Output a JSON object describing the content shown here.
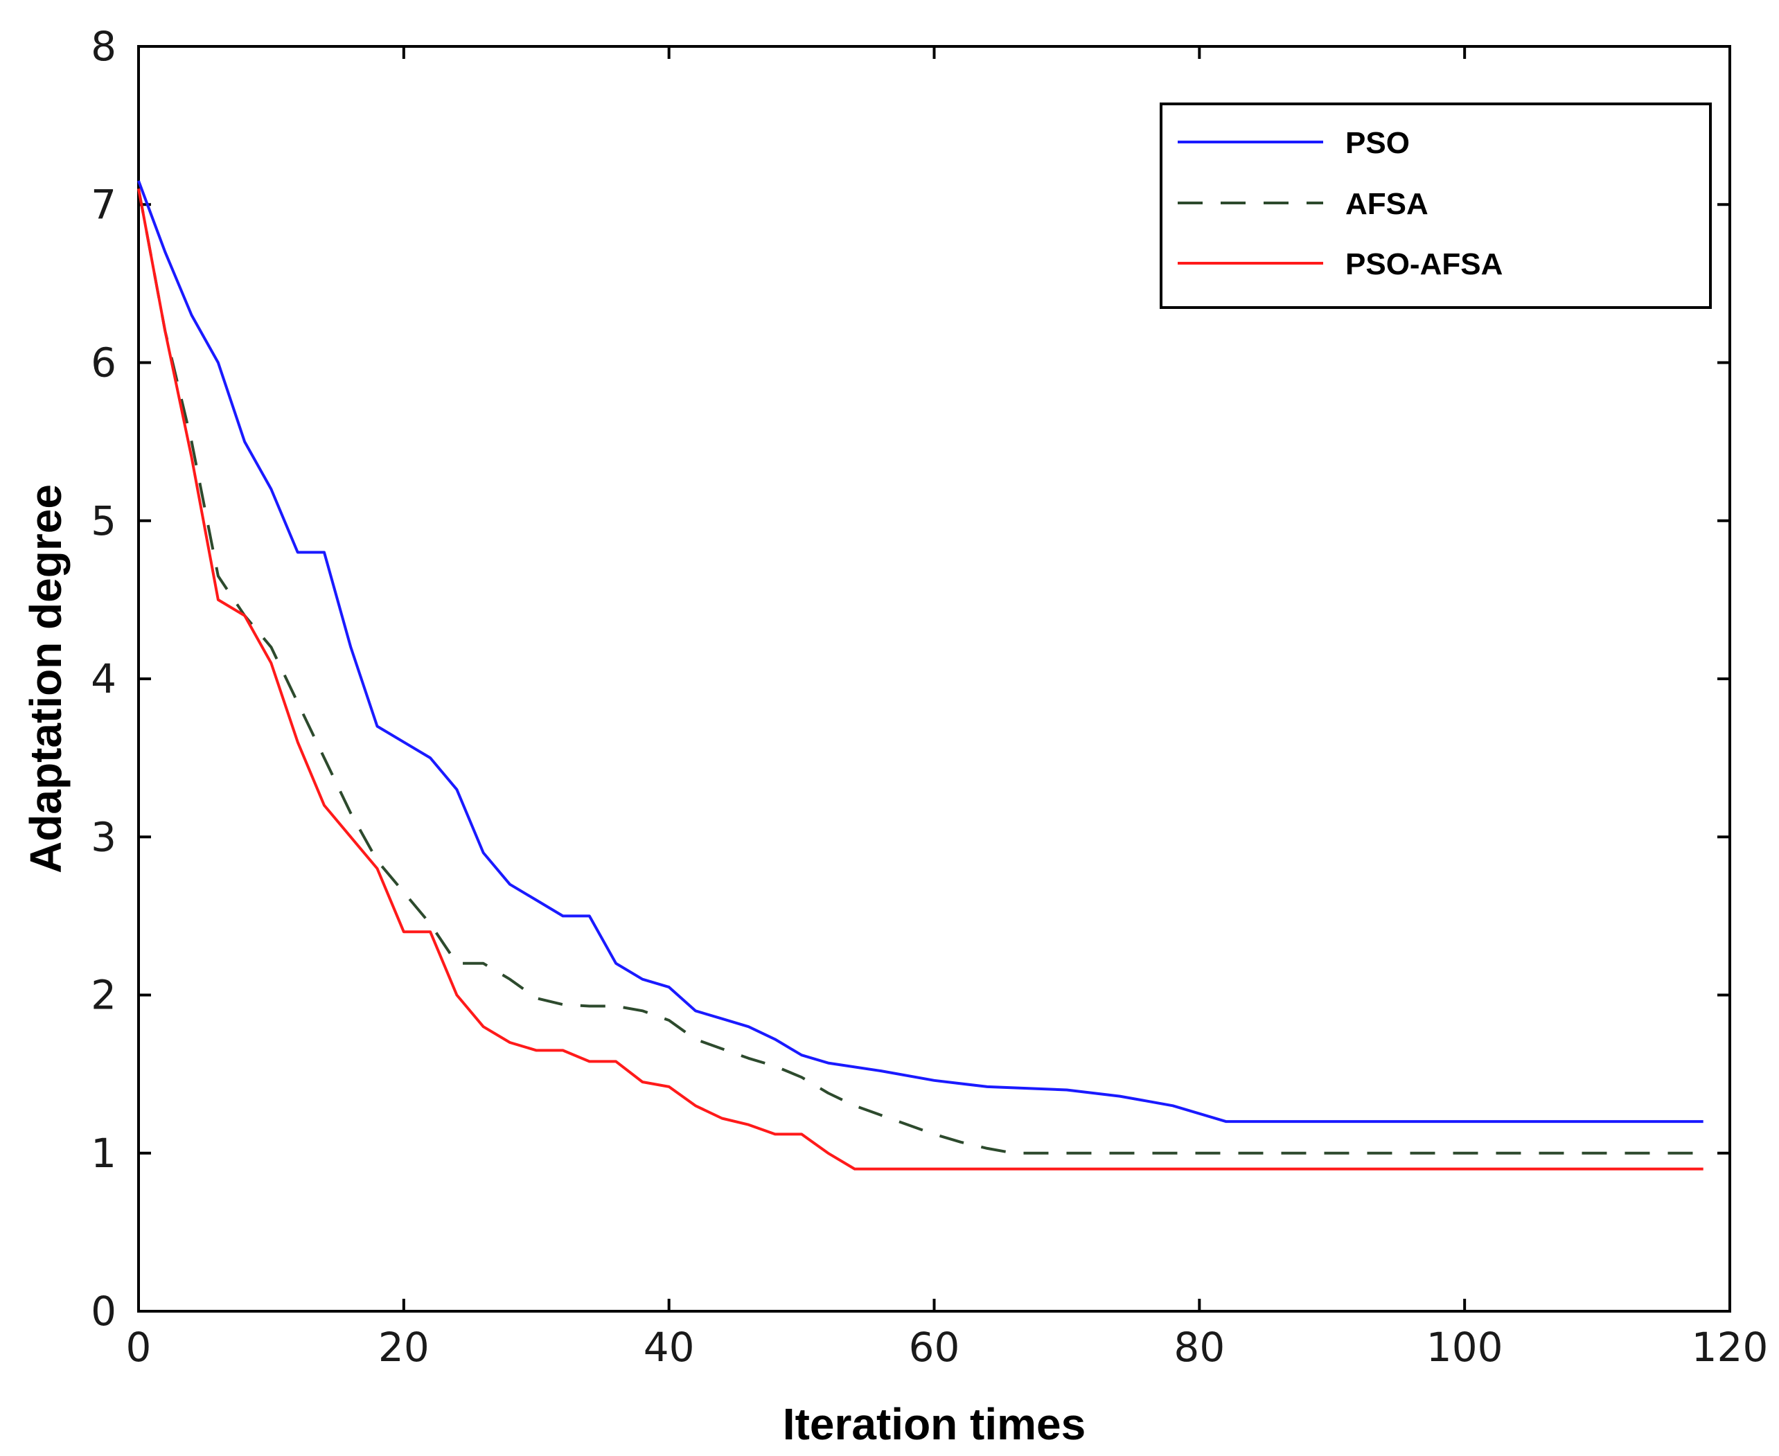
{
  "chart_data": {
    "type": "line",
    "title": "",
    "xlabel": "Iteration times",
    "ylabel": "Adaptation degree",
    "xlim": [
      0,
      120
    ],
    "ylim": [
      0,
      8
    ],
    "xticks": [
      0,
      20,
      40,
      60,
      80,
      100,
      120
    ],
    "yticks": [
      0,
      1,
      2,
      3,
      4,
      5,
      6,
      7,
      8
    ],
    "grid": false,
    "legend_position": "top-right",
    "series": [
      {
        "name": "PSO",
        "color": "#1a1aff",
        "style": "solid",
        "x": [
          0,
          2,
          4,
          6,
          8,
          10,
          12,
          14,
          16,
          18,
          20,
          22,
          24,
          26,
          28,
          30,
          32,
          34,
          36,
          38,
          40,
          42,
          44,
          46,
          48,
          50,
          52,
          56,
          60,
          64,
          70,
          74,
          78,
          80,
          82,
          100,
          118
        ],
        "y": [
          7.15,
          6.7,
          6.3,
          6.0,
          5.5,
          5.2,
          4.8,
          4.8,
          4.2,
          3.7,
          3.6,
          3.5,
          3.3,
          2.9,
          2.7,
          2.6,
          2.5,
          2.5,
          2.2,
          2.1,
          2.05,
          1.9,
          1.85,
          1.8,
          1.72,
          1.62,
          1.57,
          1.52,
          1.46,
          1.42,
          1.4,
          1.36,
          1.3,
          1.25,
          1.2,
          1.2,
          1.2
        ]
      },
      {
        "name": "AFSA",
        "color": "#2d4a2d",
        "style": "dashed",
        "x": [
          0,
          2,
          4,
          6,
          8,
          10,
          12,
          14,
          16,
          18,
          20,
          22,
          24,
          26,
          28,
          30,
          32,
          34,
          36,
          38,
          40,
          42,
          44,
          46,
          48,
          50,
          52,
          54,
          56,
          58,
          60,
          62,
          64,
          66,
          80,
          100,
          118
        ],
        "y": [
          7.1,
          6.2,
          5.5,
          4.65,
          4.4,
          4.2,
          3.85,
          3.5,
          3.15,
          2.85,
          2.65,
          2.45,
          2.2,
          2.2,
          2.1,
          1.98,
          1.94,
          1.93,
          1.93,
          1.9,
          1.84,
          1.72,
          1.66,
          1.6,
          1.55,
          1.48,
          1.38,
          1.3,
          1.24,
          1.18,
          1.12,
          1.07,
          1.03,
          1.0,
          1.0,
          1.0,
          1.0
        ]
      },
      {
        "name": "PSO-AFSA",
        "color": "#ff1a1a",
        "style": "solid",
        "x": [
          0,
          2,
          4,
          6,
          8,
          10,
          12,
          14,
          16,
          18,
          20,
          22,
          24,
          26,
          28,
          30,
          32,
          34,
          36,
          38,
          40,
          42,
          44,
          46,
          48,
          50,
          52,
          54,
          80,
          100,
          118
        ],
        "y": [
          7.1,
          6.2,
          5.4,
          4.5,
          4.4,
          4.1,
          3.6,
          3.2,
          3.0,
          2.8,
          2.4,
          2.4,
          2.0,
          1.8,
          1.7,
          1.65,
          1.65,
          1.58,
          1.58,
          1.45,
          1.42,
          1.3,
          1.22,
          1.18,
          1.12,
          1.12,
          1.0,
          0.9,
          0.9,
          0.9,
          0.9
        ]
      }
    ]
  }
}
